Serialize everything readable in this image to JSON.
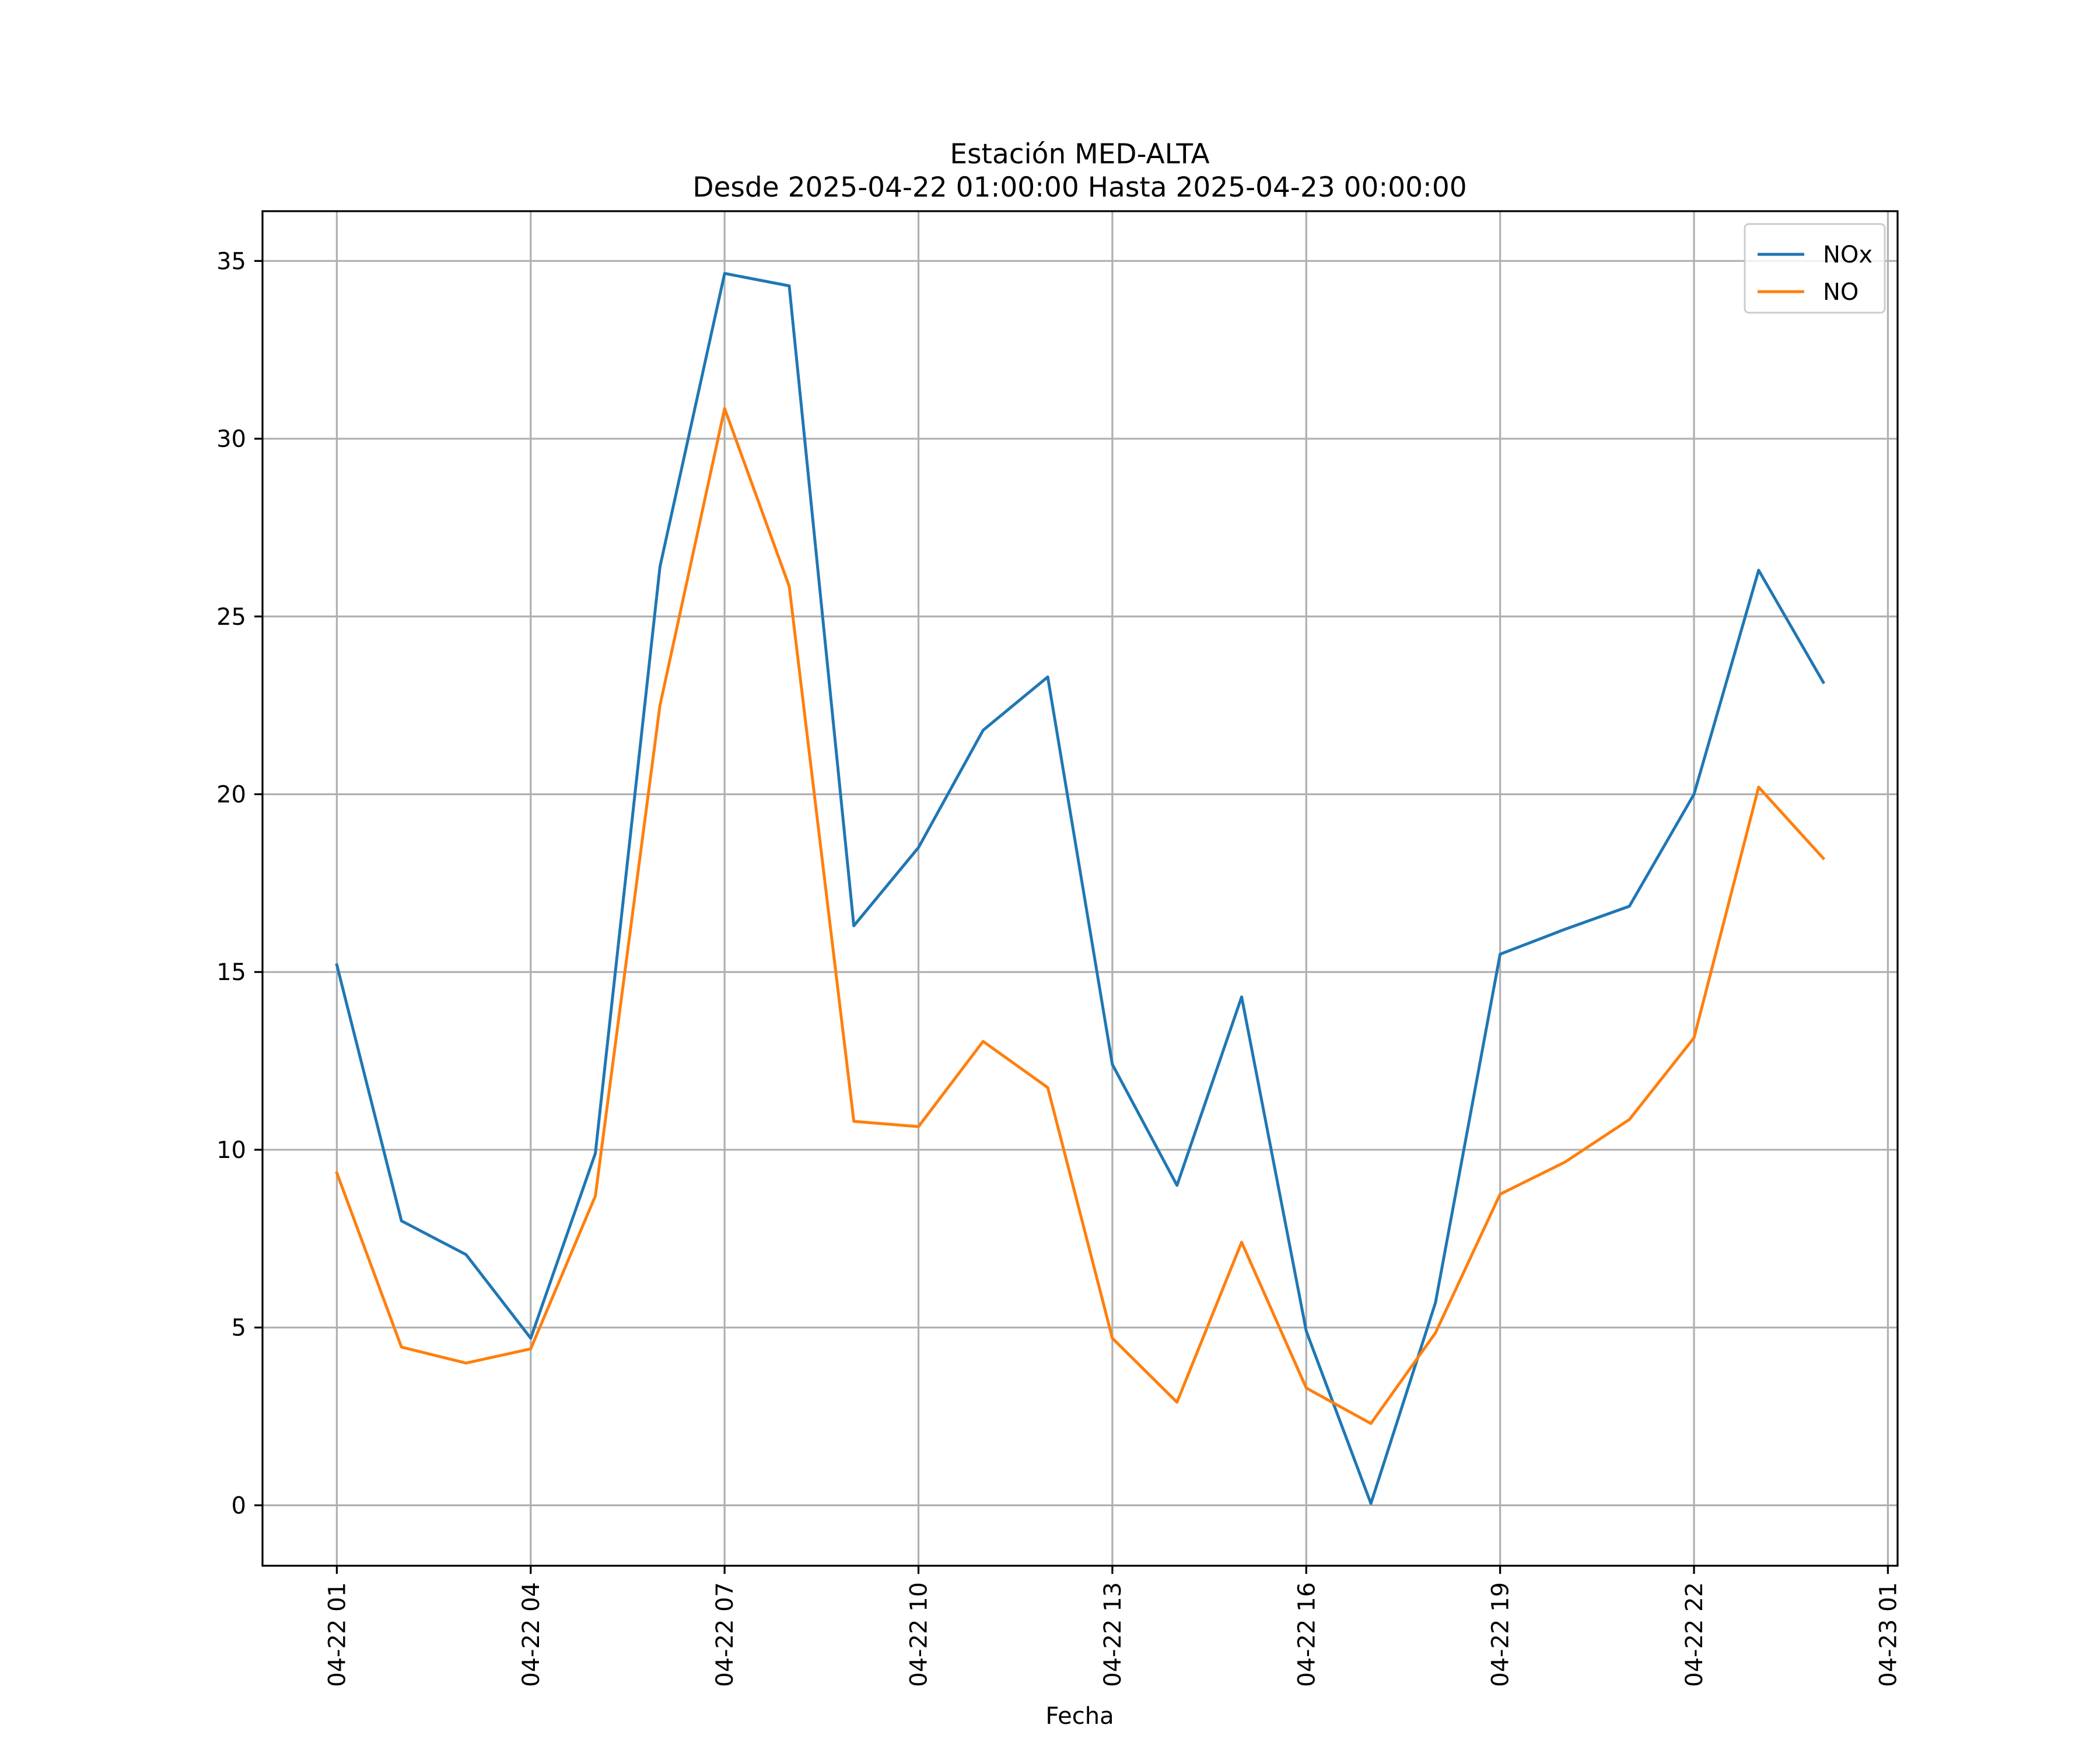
{
  "chart_data": {
    "type": "line",
    "title": "Estación MED-ALTA",
    "subtitle": "Desde 2025-04-22 01:00:00 Hasta 2025-04-23 00:00:00",
    "xlabel": "Fecha",
    "ylabel": "",
    "x": [
      "2025-04-22 01:00",
      "2025-04-22 02:00",
      "2025-04-22 03:00",
      "2025-04-22 04:00",
      "2025-04-22 05:00",
      "2025-04-22 06:00",
      "2025-04-22 07:00",
      "2025-04-22 08:00",
      "2025-04-22 09:00",
      "2025-04-22 10:00",
      "2025-04-22 11:00",
      "2025-04-22 12:00",
      "2025-04-22 13:00",
      "2025-04-22 14:00",
      "2025-04-22 15:00",
      "2025-04-22 16:00",
      "2025-04-22 17:00",
      "2025-04-22 18:00",
      "2025-04-22 19:00",
      "2025-04-22 20:00",
      "2025-04-22 21:00",
      "2025-04-22 22:00",
      "2025-04-22 23:00",
      "2025-04-23 00:00"
    ],
    "series": [
      {
        "name": "NOx",
        "color": "#1f77b4",
        "values": [
          15.2,
          8.0,
          7.05,
          4.7,
          9.9,
          26.4,
          34.65,
          34.3,
          16.3,
          18.5,
          21.8,
          23.3,
          12.4,
          9.0,
          14.3,
          4.9,
          0.05,
          5.7,
          15.5,
          16.2,
          16.85,
          20.0,
          26.3,
          23.15
        ]
      },
      {
        "name": "NO",
        "color": "#ff7f0e",
        "values": [
          9.35,
          4.45,
          4.0,
          4.4,
          8.7,
          22.5,
          30.85,
          25.85,
          10.8,
          10.65,
          13.05,
          11.75,
          4.7,
          2.9,
          7.4,
          3.3,
          2.3,
          4.85,
          8.75,
          9.65,
          10.85,
          13.15,
          20.2,
          18.2
        ]
      }
    ],
    "xticks": [
      {
        "at": "2025-04-22 01:00",
        "label": "04-22 01"
      },
      {
        "at": "2025-04-22 04:00",
        "label": "04-22 04"
      },
      {
        "at": "2025-04-22 07:00",
        "label": "04-22 07"
      },
      {
        "at": "2025-04-22 10:00",
        "label": "04-22 10"
      },
      {
        "at": "2025-04-22 13:00",
        "label": "04-22 13"
      },
      {
        "at": "2025-04-22 16:00",
        "label": "04-22 16"
      },
      {
        "at": "2025-04-22 19:00",
        "label": "04-22 19"
      },
      {
        "at": "2025-04-22 22:00",
        "label": "04-22 22"
      },
      {
        "at": "2025-04-23 01:00",
        "label": "04-23 01"
      }
    ],
    "yticks": [
      0,
      5,
      10,
      15,
      20,
      25,
      30,
      35
    ],
    "xlim": [
      "2025-04-21 23:51",
      "2025-04-23 01:09"
    ],
    "ylim": [
      -1.7,
      36.4
    ],
    "grid": true,
    "legend_position": "upper right"
  }
}
